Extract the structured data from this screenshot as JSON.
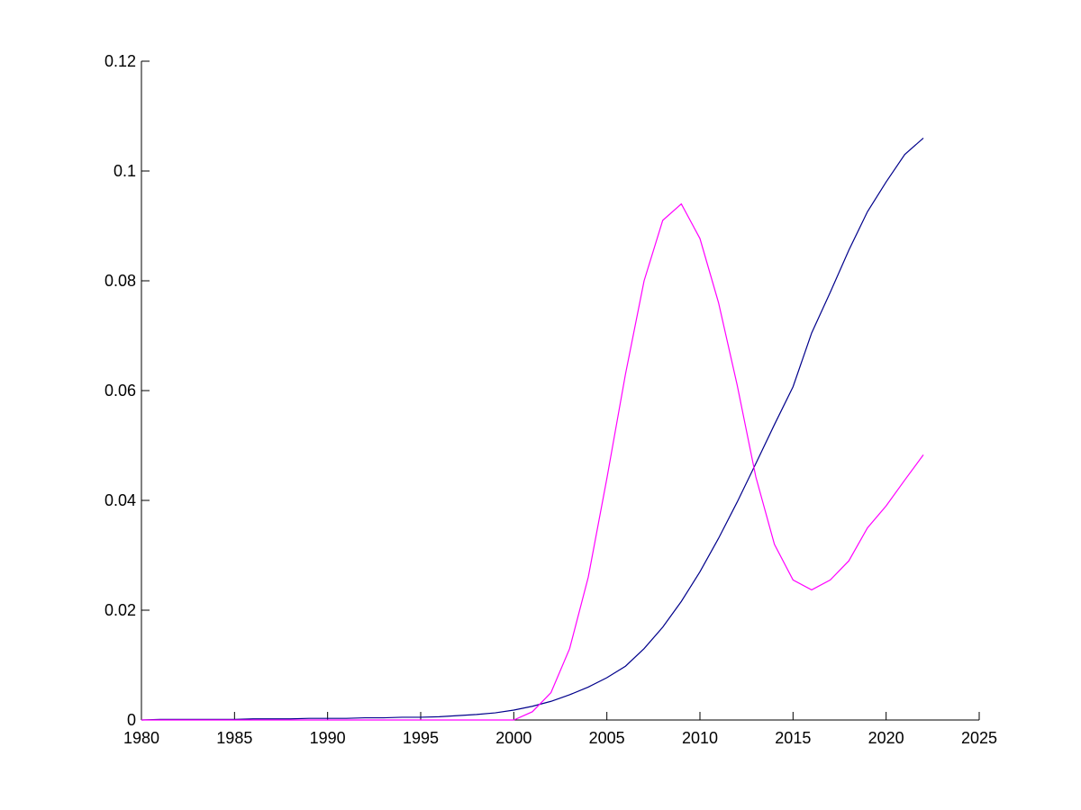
{
  "chart_data": {
    "type": "line",
    "x": [
      1980,
      1981,
      1982,
      1983,
      1984,
      1985,
      1986,
      1987,
      1988,
      1989,
      1990,
      1991,
      1992,
      1993,
      1994,
      1995,
      1996,
      1997,
      1998,
      1999,
      2000,
      2001,
      2002,
      2003,
      2004,
      2005,
      2006,
      2007,
      2008,
      2009,
      2010,
      2011,
      2012,
      2013,
      2014,
      2015,
      2016,
      2017,
      2018,
      2019,
      2020,
      2021,
      2022
    ],
    "series": [
      {
        "color": "#00008b",
        "values": [
          0,
          0.0001,
          0.0001,
          0.0001,
          0.0001,
          0.0001,
          0.0002,
          0.0002,
          0.0002,
          0.0003,
          0.0003,
          0.0003,
          0.0004,
          0.0004,
          0.0005,
          0.0005,
          0.0006,
          0.0008,
          0.001,
          0.0013,
          0.0018,
          0.0025,
          0.0034,
          0.0046,
          0.006,
          0.0077,
          0.0098,
          0.013,
          0.0169,
          0.0216,
          0.027,
          0.0331,
          0.0397,
          0.0467,
          0.0538,
          0.0607,
          0.0705,
          0.0779,
          0.0856,
          0.0926,
          0.098,
          0.103,
          0.106
        ]
      },
      {
        "color": "#ff00ff",
        "values": [
          0,
          0,
          0,
          0,
          0,
          0,
          0,
          0,
          0,
          0,
          0,
          0,
          0,
          0,
          0,
          0,
          0,
          0,
          0,
          0,
          0,
          0.0015,
          0.005,
          0.013,
          0.026,
          0.044,
          0.063,
          0.08,
          0.091,
          0.094,
          0.0877,
          0.076,
          0.061,
          0.0443,
          0.032,
          0.0255,
          0.0237,
          0.0255,
          0.029,
          0.035,
          0.039,
          0.0437,
          0.0483
        ]
      }
    ],
    "xlim": [
      1980,
      2025
    ],
    "xticks": [
      1980,
      1985,
      1990,
      1995,
      2000,
      2005,
      2010,
      2015,
      2020,
      2025
    ],
    "ylim": [
      0,
      0.12
    ],
    "yticks": [
      0,
      0.02,
      0.04,
      0.06,
      0.08,
      0.1,
      0.12
    ]
  }
}
